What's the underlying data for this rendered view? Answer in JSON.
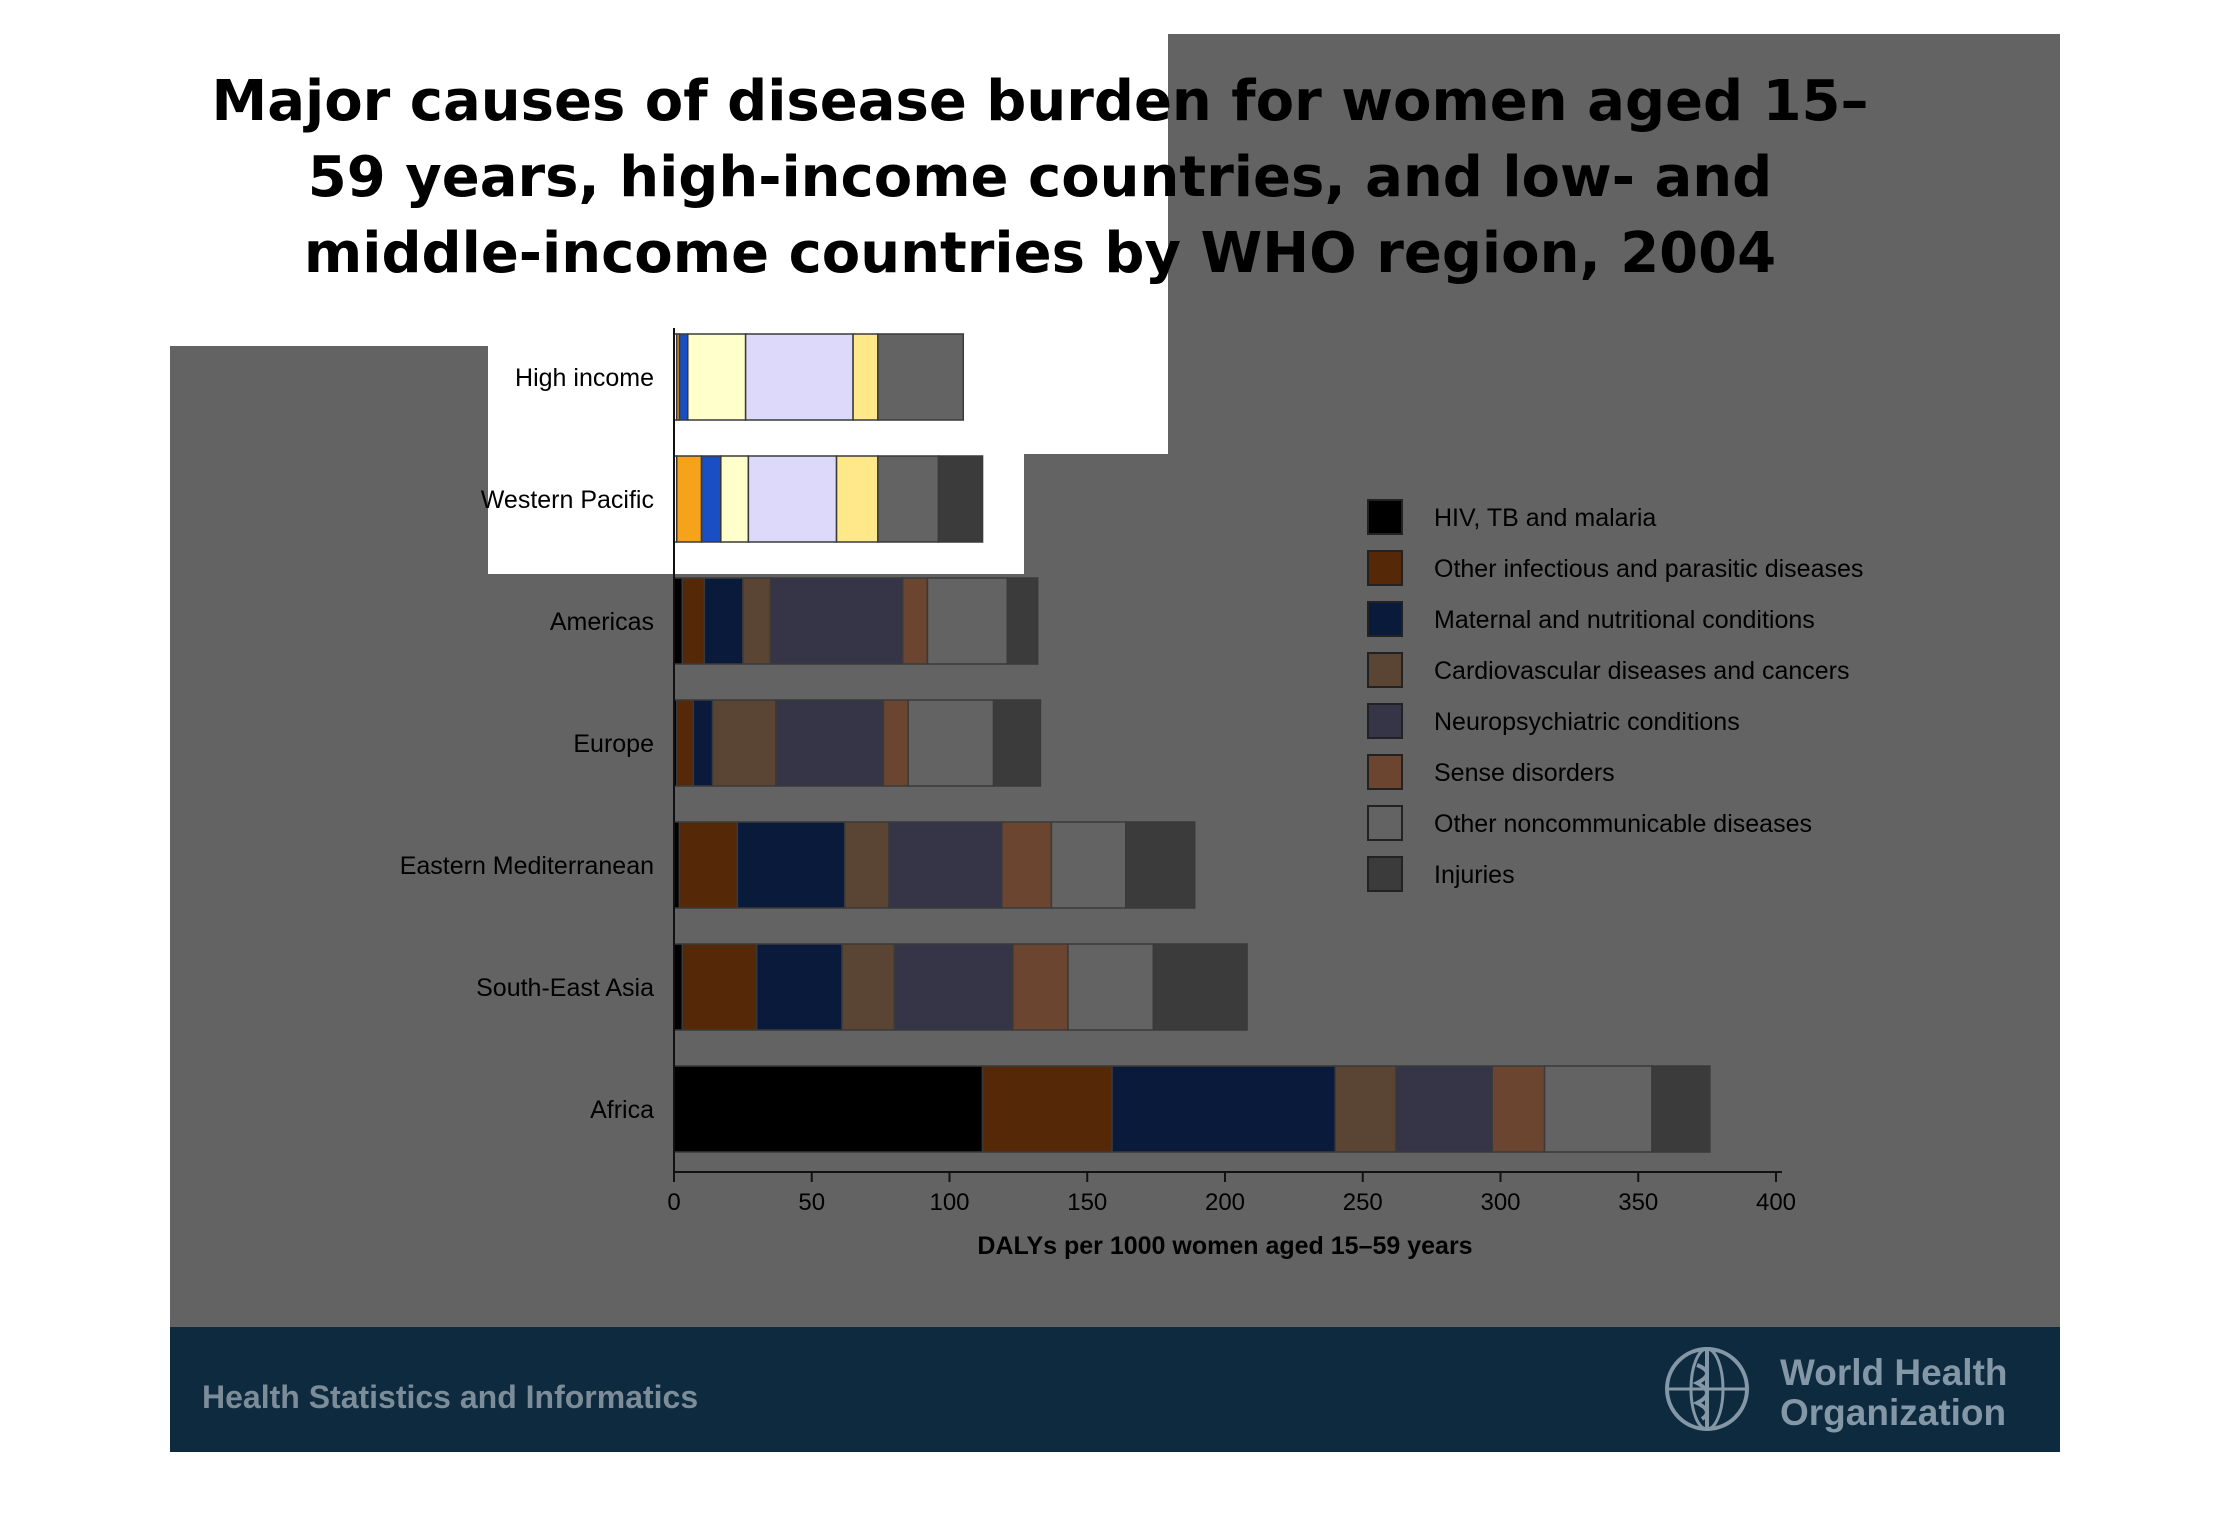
{
  "colors": {
    "slide_bg": "#636363",
    "footer_bg": "#0e2a3f"
  },
  "footer": {
    "left_text": "Health Statistics and Informatics",
    "org_line1": "World Health",
    "org_line2": "Organization",
    "logo_icon": "who-emblem-icon"
  },
  "chart_data": {
    "type": "bar",
    "orientation": "horizontal",
    "stacked": true,
    "title": "Major causes of disease burden for women aged 15–59 years, high-income countries, and low- and middle-income countries by WHO region, 2004",
    "xlabel": "DALYs per 1000 women aged 15–59 years",
    "ylabel": "",
    "xlim": [
      0,
      400
    ],
    "xticks": [
      0,
      50,
      100,
      150,
      200,
      250,
      300,
      350,
      400
    ],
    "categories": [
      "High income",
      "Western Pacific",
      "Americas",
      "Europe",
      "Eastern Mediterranean",
      "South-East Asia",
      "Africa"
    ],
    "legend_position": "right",
    "series": [
      {
        "name": "HIV, TB and malaria",
        "color": "#000000",
        "values": [
          1,
          1,
          3,
          1,
          2,
          3,
          112
        ]
      },
      {
        "name": "Other infectious and parasitic diseases",
        "color": "#552808",
        "values": [
          1,
          9,
          8,
          6,
          21,
          27,
          47
        ]
      },
      {
        "name": "Maternal and nutritional conditions",
        "color": "#0a1a3a",
        "values": [
          3,
          7,
          14,
          7,
          39,
          31,
          81
        ]
      },
      {
        "name": "Cardiovascular diseases and cancers",
        "color": "#5a4535",
        "values": [
          21,
          10,
          10,
          23,
          16,
          19,
          22
        ]
      },
      {
        "name": "Neuropsychiatric conditions",
        "color": "#363548",
        "values": [
          39,
          32,
          48,
          39,
          41,
          43,
          35
        ]
      },
      {
        "name": "Sense disorders",
        "color": "#6b4530",
        "values": [
          9,
          15,
          9,
          9,
          18,
          20,
          19
        ]
      },
      {
        "name": "Other noncommunicable diseases",
        "color": "#636363",
        "values": [
          31,
          22,
          29,
          31,
          27,
          31,
          39
        ]
      },
      {
        "name": "Injuries",
        "color": "#3b3b3b",
        "values": [
          0,
          16,
          11,
          17,
          25,
          34,
          21
        ]
      }
    ]
  }
}
